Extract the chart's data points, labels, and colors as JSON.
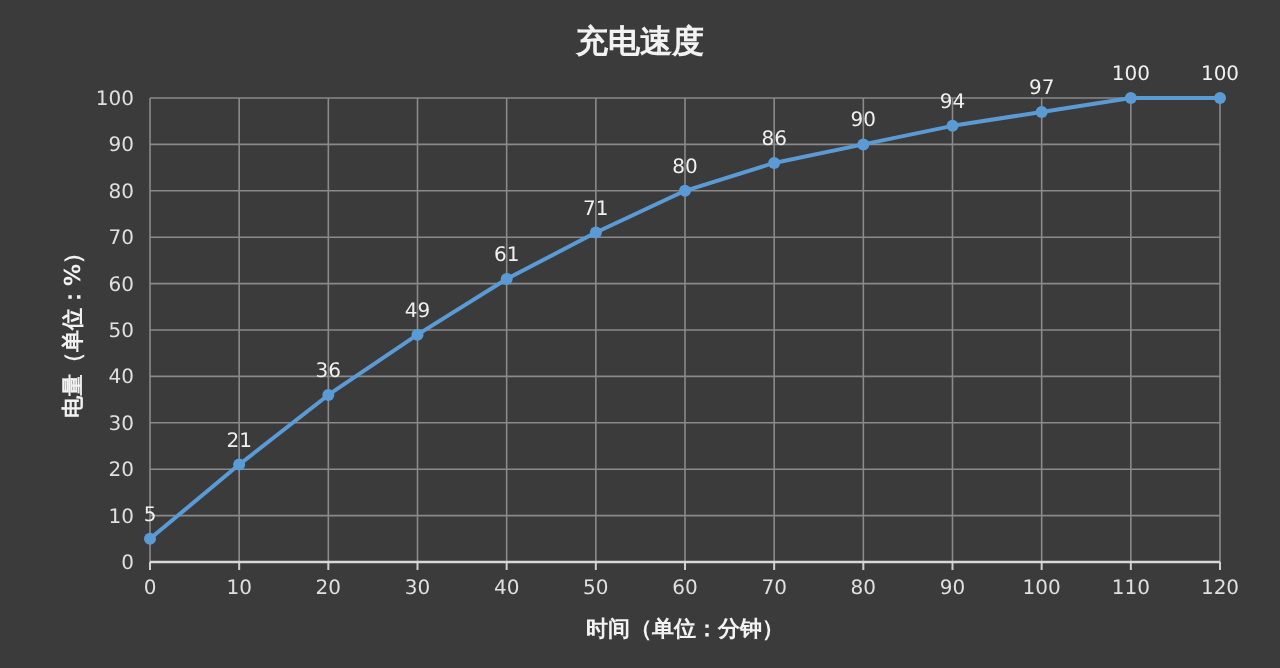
{
  "chart_data": {
    "type": "line",
    "title": "充电速度",
    "xlabel": "时间（单位：分钟）",
    "ylabel": "电量（单位：%）",
    "x": [
      0,
      10,
      20,
      30,
      40,
      50,
      60,
      70,
      80,
      90,
      100,
      110,
      120
    ],
    "series": [
      {
        "color": "#5b9bd5",
        "values": [
          5,
          21,
          36,
          49,
          61,
          71,
          80,
          86,
          90,
          94,
          97,
          100,
          100
        ]
      }
    ],
    "xlim": [
      0,
      120
    ],
    "xticks": [
      0,
      10,
      20,
      30,
      40,
      50,
      60,
      70,
      80,
      90,
      100,
      110,
      120
    ],
    "ylim": [
      0,
      100
    ],
    "yticks": [
      0,
      10,
      20,
      30,
      40,
      50,
      60,
      70,
      80,
      90,
      100
    ],
    "grid": true,
    "data_labels": true,
    "marker": "circle",
    "line_style": "solid"
  }
}
